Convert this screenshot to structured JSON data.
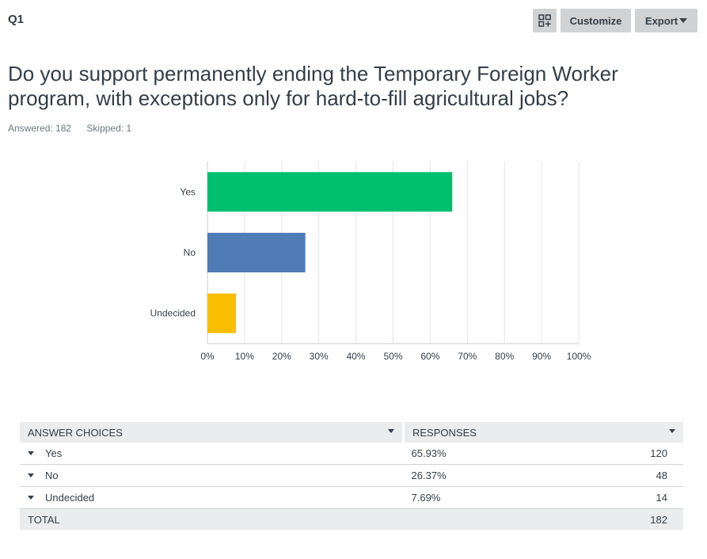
{
  "header": {
    "question_id": "Q1",
    "customize_label": "Customize",
    "export_label": "Export"
  },
  "question": {
    "text": "Do you support permanently ending the Temporary Foreign Worker program, with exceptions only for hard-to-fill agricultural jobs?",
    "answered_text": "Answered: 182",
    "skipped_text": "Skipped: 1"
  },
  "chart_data": {
    "type": "bar",
    "orientation": "horizontal",
    "categories": [
      "Yes",
      "No",
      "Undecided"
    ],
    "values": [
      65.93,
      26.37,
      7.69
    ],
    "colors": [
      "#00bf6f",
      "#507cb6",
      "#f9be00"
    ],
    "xlim": [
      0,
      100
    ],
    "xticks": [
      "0%",
      "10%",
      "20%",
      "30%",
      "40%",
      "50%",
      "60%",
      "70%",
      "80%",
      "90%",
      "100%"
    ],
    "grid": true
  },
  "table": {
    "headers": [
      "ANSWER CHOICES",
      "RESPONSES"
    ],
    "rows": [
      {
        "choice": "Yes",
        "percent": "65.93%",
        "count": "120"
      },
      {
        "choice": "No",
        "percent": "26.37%",
        "count": "48"
      },
      {
        "choice": "Undecided",
        "percent": "7.69%",
        "count": "14"
      }
    ],
    "total_label": "TOTAL",
    "total_count": "182"
  }
}
